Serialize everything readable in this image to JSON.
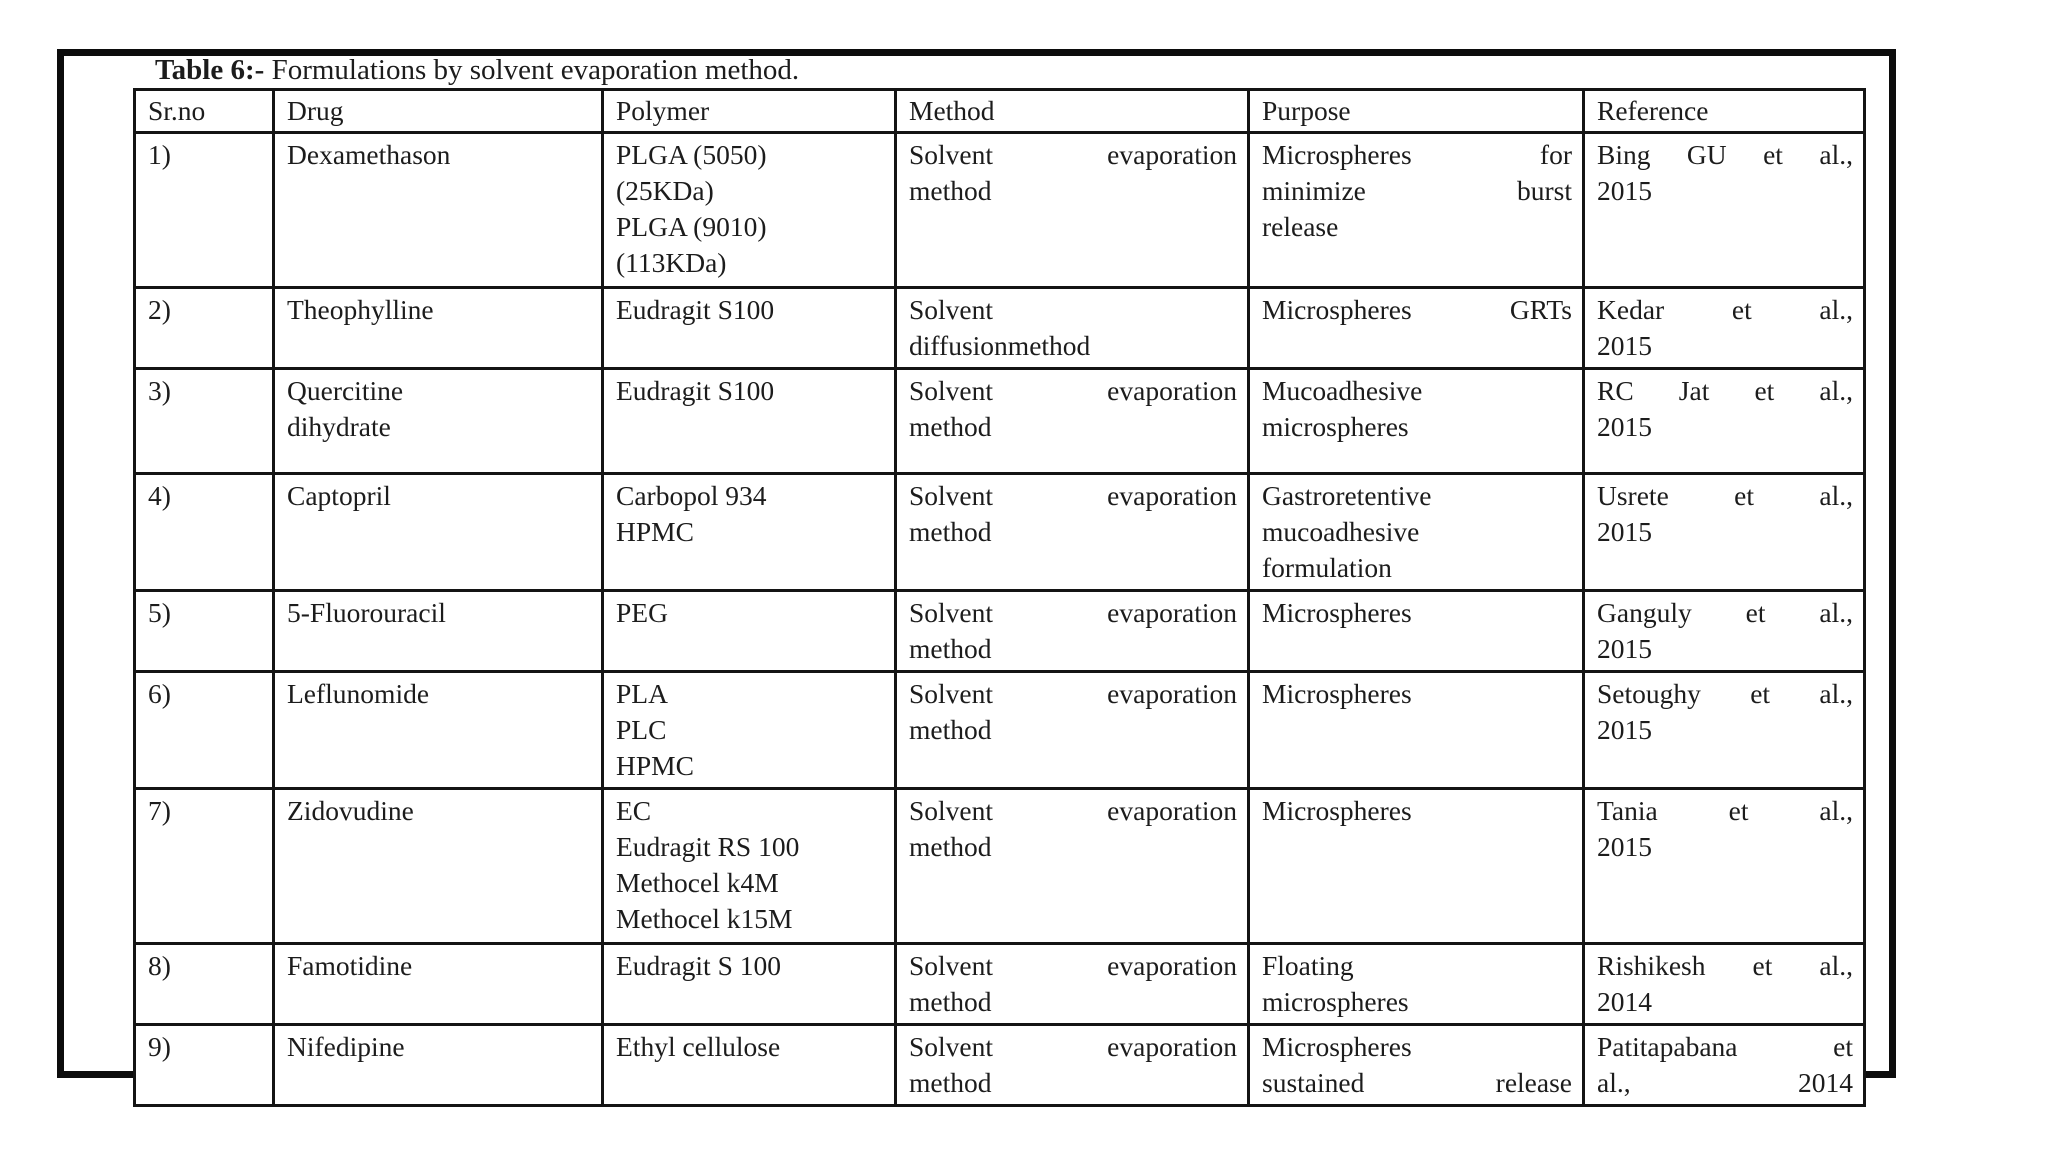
{
  "colors": {
    "background": "#ffffff",
    "text": "#1c1c1c",
    "grid_border": "#141414",
    "outer_frame": "#0c0c0c"
  },
  "table": {
    "title_bold": "Table 6:-",
    "title_rest": " Formulations by solvent evaporation method.",
    "columns": [
      "Sr.no",
      "Drug",
      "Polymer",
      "Method",
      "Purpose",
      "Reference"
    ],
    "rows": [
      {
        "sr": "1)",
        "drug": "Dexamethason",
        "polymer": "PLGA (5050)\n(25KDa)\nPLGA (9010)\n(113KDa)",
        "method": "Solvent evaporation\nmethod",
        "purpose": "Microspheres for\nminimize burst\nrelease",
        "reference": "Bing GU et al.,\n2015"
      },
      {
        "sr": "2)",
        "drug": "Theophylline",
        "polymer": "Eudragit S100",
        "method": "Solvent\ndiffusionmethod",
        "purpose": "Microspheres GRTs",
        "reference": "Kedar et al.,\n2015"
      },
      {
        "sr": "3)",
        "drug": "Quercitine\ndihydrate",
        "polymer": "Eudragit S100",
        "method": "Solvent evaporation\nmethod",
        "purpose": "Mucoadhesive\nmicrospheres",
        "reference": "RC Jat et al.,\n2015"
      },
      {
        "sr": "4)",
        "drug": "Captopril",
        "polymer": "Carbopol 934\nHPMC",
        "method": "Solvent evaporation\nmethod",
        "purpose": "Gastroretentive\nmucoadhesive\nformulation",
        "reference": "Usrete et al.,\n2015"
      },
      {
        "sr": "5)",
        "drug": "5-Fluorouracil",
        "polymer": "PEG",
        "method": "Solvent evaporation\nmethod",
        "purpose": "Microspheres",
        "reference": "Ganguly et al.,\n2015"
      },
      {
        "sr": "6)",
        "drug": "Leflunomide",
        "polymer": "PLA\nPLC\nHPMC",
        "method": "Solvent evaporation\nmethod",
        "purpose": "Microspheres",
        "reference": "Setoughy et al.,\n2015"
      },
      {
        "sr": "7)",
        "drug": "Zidovudine",
        "polymer": "EC\nEudragit RS 100\nMethocel k4M\nMethocel k15M",
        "method": "Solvent evaporation\nmethod",
        "purpose": "Microspheres",
        "reference": "Tania et al.,\n2015"
      },
      {
        "sr": "8)",
        "drug": "Famotidine",
        "polymer": "Eudragit S 100",
        "method": "Solvent evaporation\nmethod",
        "purpose": "Floating\nmicrospheres",
        "reference": "Rishikesh et al.,\n2014"
      },
      {
        "sr": "9)",
        "drug": "Nifedipine",
        "polymer": "Ethyl cellulose",
        "method": "Solvent evaporation\nmethod",
        "purpose": "Microspheres\nsustained release",
        "reference": "Patitapabana et\nal., 2014"
      }
    ]
  }
}
